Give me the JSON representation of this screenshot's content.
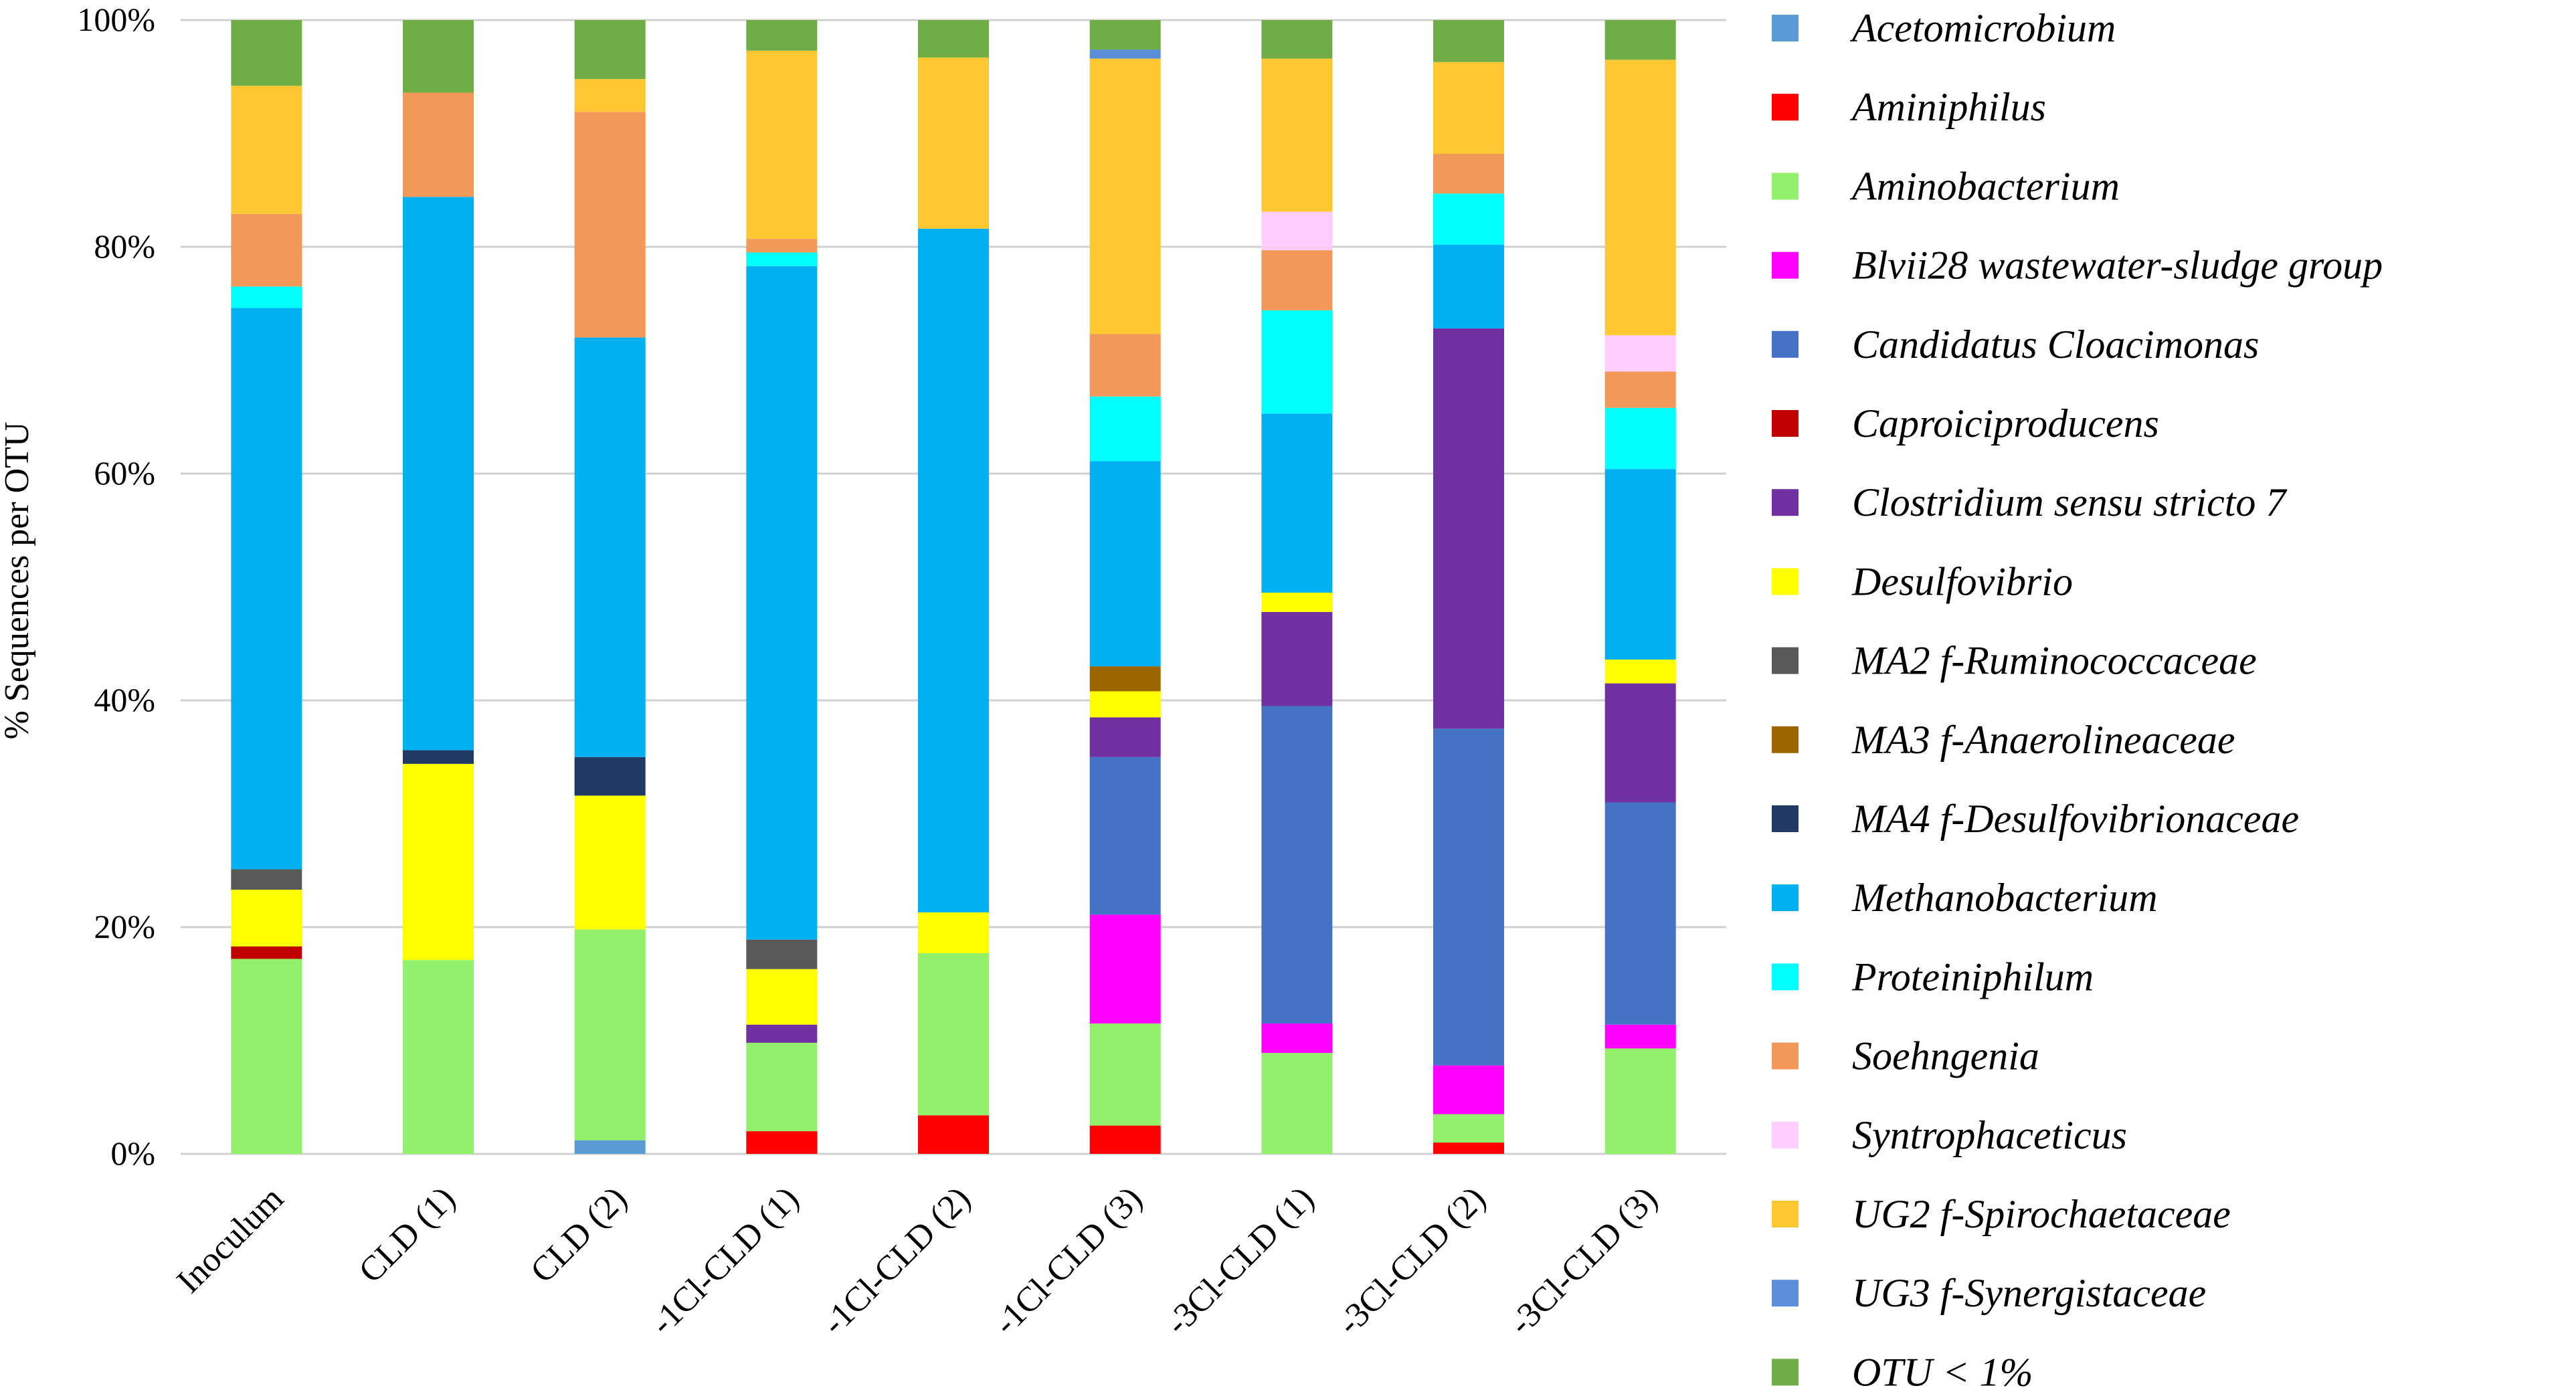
{
  "chart_data": {
    "type": "bar",
    "stacked": true,
    "title": "",
    "ylabel": "% Sequences per OTU",
    "xlabel": "",
    "ylim": [
      0,
      100
    ],
    "y_ticks": [
      {
        "value": 0,
        "label": "0%"
      },
      {
        "value": 20,
        "label": "20%"
      },
      {
        "value": 40,
        "label": "40%"
      },
      {
        "value": 60,
        "label": "60%"
      },
      {
        "value": 80,
        "label": "80%"
      },
      {
        "value": 100,
        "label": "100%"
      }
    ],
    "grid": true,
    "legend_position": "right",
    "categories": [
      "Inoculum",
      "CLD (1)",
      "CLD (2)",
      "-1Cl-CLD (1)",
      "-1Cl-CLD (2)",
      "-1Cl-CLD (3)",
      "-3Cl-CLD (1)",
      "-3Cl-CLD (2)",
      "-3Cl-CLD (3)"
    ],
    "series": [
      {
        "name": "Acetomicrobium",
        "color": "#5b9bd5",
        "values": [
          0,
          0,
          1.2,
          0,
          0,
          0,
          0,
          0,
          0
        ]
      },
      {
        "name": "Aminiphilus",
        "color": "#ff0000",
        "values": [
          0,
          0,
          0,
          2.0,
          3.4,
          2.5,
          0,
          1.0,
          0
        ]
      },
      {
        "name": "Aminobacterium",
        "color": "#92f06a",
        "values": [
          17.2,
          17.1,
          18.6,
          7.8,
          14.3,
          9.0,
          8.9,
          2.5,
          9.3
        ]
      },
      {
        "name": "Blvii28 wastewater-sludge group",
        "color": "#ff00ff",
        "values": [
          0,
          0,
          0,
          0,
          0,
          9.6,
          2.6,
          4.3,
          2.1
        ]
      },
      {
        "name": "Candidatus Cloacimonas",
        "color": "#4472c4",
        "values": [
          0,
          0,
          0,
          0,
          0,
          13.9,
          28.0,
          29.7,
          19.6
        ]
      },
      {
        "name": "Caproiciproducens",
        "color": "#c00000",
        "values": [
          1.1,
          0,
          0,
          0,
          0,
          0,
          0,
          0,
          0
        ]
      },
      {
        "name": "Clostridium sensu stricto 7",
        "color": "#7030a0",
        "values": [
          0,
          0,
          0,
          1.6,
          0,
          3.5,
          8.3,
          35.3,
          10.5
        ]
      },
      {
        "name": "Desulfovibrio",
        "color": "#ffff00",
        "values": [
          5.0,
          17.3,
          11.8,
          4.9,
          3.6,
          2.3,
          1.7,
          0,
          2.1
        ]
      },
      {
        "name": "MA2 f-Ruminococcaceae",
        "color": "#595959",
        "values": [
          1.8,
          0,
          0,
          2.6,
          0,
          0,
          0,
          0,
          0
        ]
      },
      {
        "name": "MA3 f-Anaerolineaceae",
        "color": "#9c6500",
        "values": [
          0,
          0,
          0,
          0,
          0,
          2.2,
          0,
          0,
          0
        ]
      },
      {
        "name": "MA4 f-Desulfovibrionaceae",
        "color": "#203864",
        "values": [
          0,
          1.2,
          3.4,
          0,
          0,
          0,
          0,
          0,
          0
        ]
      },
      {
        "name": "Methanobacterium",
        "color": "#00b0f0",
        "values": [
          49.5,
          48.8,
          37.0,
          59.4,
          60.3,
          18.1,
          15.8,
          7.4,
          16.8
        ]
      },
      {
        "name": "Proteiniphilum",
        "color": "#00ffff",
        "values": [
          1.9,
          0,
          0,
          1.2,
          0,
          5.7,
          9.1,
          4.5,
          5.4
        ]
      },
      {
        "name": "Soehngenia",
        "color": "#f4985a",
        "values": [
          6.4,
          9.2,
          19.9,
          1.2,
          0,
          5.5,
          5.3,
          3.5,
          3.2
        ]
      },
      {
        "name": "Syntrophaceticus",
        "color": "#ffccff",
        "values": [
          0,
          0,
          0,
          0,
          0,
          0,
          3.4,
          0,
          3.2
        ]
      },
      {
        "name": "UG2 f-Spirochaetaceae",
        "color": "#ffc832",
        "values": [
          11.3,
          0,
          2.9,
          16.6,
          15.1,
          24.3,
          13.5,
          8.1,
          24.3
        ]
      },
      {
        "name": "UG3 f-Synergistaceae",
        "color": "#5a8ed8",
        "values": [
          0,
          0,
          0,
          0,
          0,
          0.8,
          0,
          0,
          0
        ]
      },
      {
        "name": "OTU < 1%",
        "color": "#70ad47",
        "values": [
          5.8,
          6.4,
          5.2,
          2.7,
          3.3,
          2.6,
          3.4,
          3.7,
          3.5
        ]
      }
    ]
  }
}
